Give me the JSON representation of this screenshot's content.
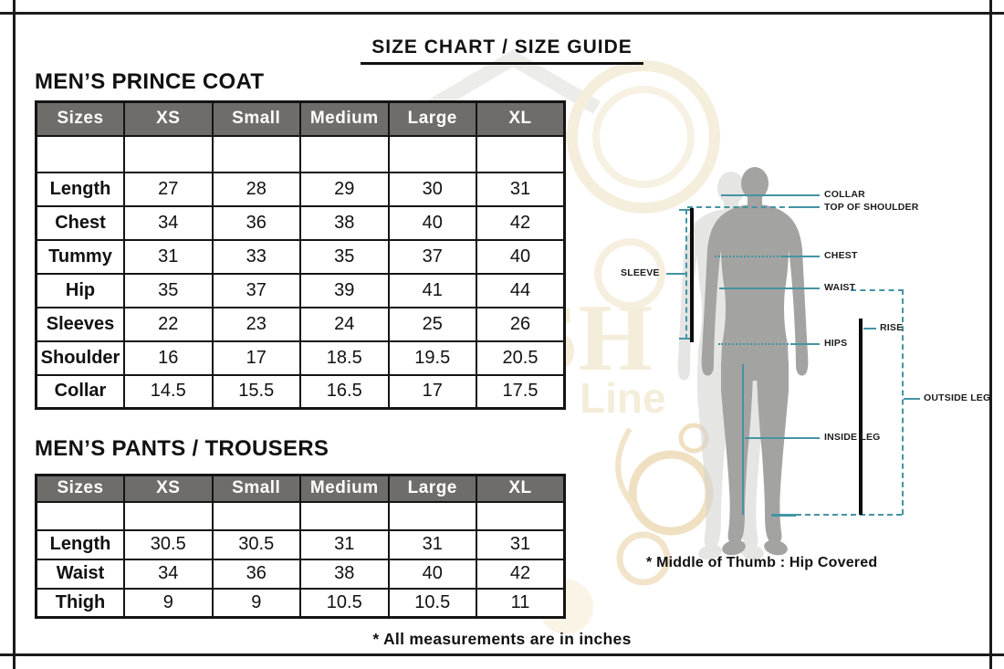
{
  "page": {
    "title": "SIZE CHART / SIZE GUIDE",
    "footnote": "* All measurements are in inches"
  },
  "watermark": {
    "monogram": "SH",
    "brand": "Line"
  },
  "coat_table": {
    "title": "MEN’S PRINCE COAT",
    "headers": [
      "Sizes",
      "XS",
      "Small",
      "Medium",
      "Large",
      "XL"
    ],
    "rows": [
      {
        "label": "Length",
        "values": [
          "27",
          "28",
          "29",
          "30",
          "31"
        ]
      },
      {
        "label": "Chest",
        "values": [
          "34",
          "36",
          "38",
          "40",
          "42"
        ]
      },
      {
        "label": "Tummy",
        "values": [
          "31",
          "33",
          "35",
          "37",
          "40"
        ]
      },
      {
        "label": "Hip",
        "values": [
          "35",
          "37",
          "39",
          "41",
          "44"
        ]
      },
      {
        "label": "Sleeves",
        "values": [
          "22",
          "23",
          "24",
          "25",
          "26"
        ]
      },
      {
        "label": "Shoulder",
        "values": [
          "16",
          "17",
          "18.5",
          "19.5",
          "20.5"
        ]
      },
      {
        "label": "Collar",
        "values": [
          "14.5",
          "15.5",
          "16.5",
          "17",
          "17.5"
        ]
      }
    ]
  },
  "pants_table": {
    "title": "MEN’S PANTS / TROUSERS",
    "headers": [
      "Sizes",
      "XS",
      "Small",
      "Medium",
      "Large",
      "XL"
    ],
    "rows": [
      {
        "label": "Length",
        "values": [
          "30.5",
          "30.5",
          "31",
          "31",
          "31"
        ]
      },
      {
        "label": "Waist",
        "values": [
          "34",
          "36",
          "38",
          "40",
          "42"
        ]
      },
      {
        "label": "Thigh",
        "values": [
          "9",
          "9",
          "10.5",
          "10.5",
          "11"
        ]
      }
    ]
  },
  "diagram": {
    "labels": {
      "collar": "COLLAR",
      "top_of_shoulder": "TOP OF SHOULDER",
      "chest": "CHEST",
      "waist": "WAIST",
      "hips": "HIPS",
      "sleeve": "SLEEVE",
      "rise": "RISE",
      "inside_leg": "INSIDE LEG",
      "outside_leg": "OUTSIDE LEG"
    },
    "note": "* Middle of Thumb : Hip Covered"
  },
  "colors": {
    "table_header_bg": "#6f6d6a",
    "table_header_text": "#ffffff",
    "table_border": "#141414",
    "measure_line_teal": "#4494a3",
    "silhouette_gray": "#a3a3a1",
    "watermark_cream": "#f4edda",
    "frame_black": "#1b1b1b"
  }
}
